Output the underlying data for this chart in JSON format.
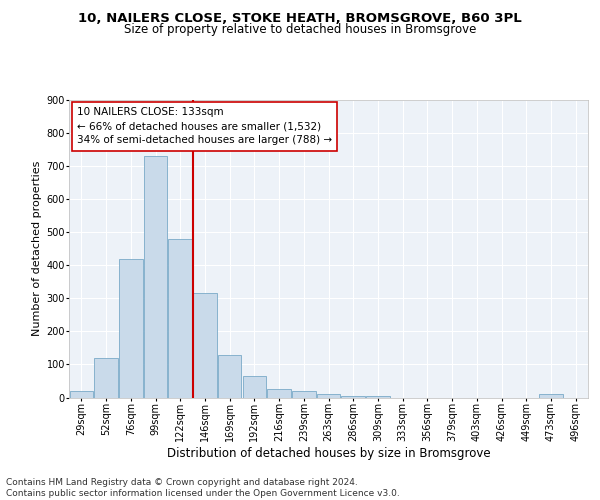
{
  "title1": "10, NAILERS CLOSE, STOKE HEATH, BROMSGROVE, B60 3PL",
  "title2": "Size of property relative to detached houses in Bromsgrove",
  "xlabel": "Distribution of detached houses by size in Bromsgrove",
  "ylabel": "Number of detached properties",
  "categories": [
    "29sqm",
    "52sqm",
    "76sqm",
    "99sqm",
    "122sqm",
    "146sqm",
    "169sqm",
    "192sqm",
    "216sqm",
    "239sqm",
    "263sqm",
    "286sqm",
    "309sqm",
    "333sqm",
    "356sqm",
    "379sqm",
    "403sqm",
    "426sqm",
    "449sqm",
    "473sqm",
    "496sqm"
  ],
  "values": [
    20,
    120,
    420,
    730,
    480,
    315,
    130,
    65,
    25,
    20,
    10,
    5,
    5,
    0,
    0,
    0,
    0,
    0,
    0,
    10,
    0
  ],
  "bar_color": "#c9daea",
  "bar_edge_color": "#7aaac8",
  "vline_x": 4.5,
  "vline_color": "#cc0000",
  "annotation_text": "10 NAILERS CLOSE: 133sqm\n← 66% of detached houses are smaller (1,532)\n34% of semi-detached houses are larger (788) →",
  "annotation_box_color": "#ffffff",
  "annotation_box_edge": "#cc0000",
  "ylim": [
    0,
    900
  ],
  "yticks": [
    0,
    100,
    200,
    300,
    400,
    500,
    600,
    700,
    800,
    900
  ],
  "footer": "Contains HM Land Registry data © Crown copyright and database right 2024.\nContains public sector information licensed under the Open Government Licence v3.0.",
  "background_color": "#ffffff",
  "plot_bg_color": "#edf2f8",
  "title1_fontsize": 9.5,
  "title2_fontsize": 8.5,
  "xlabel_fontsize": 8.5,
  "ylabel_fontsize": 8,
  "tick_fontsize": 7,
  "annotation_fontsize": 7.5,
  "footer_fontsize": 6.5
}
